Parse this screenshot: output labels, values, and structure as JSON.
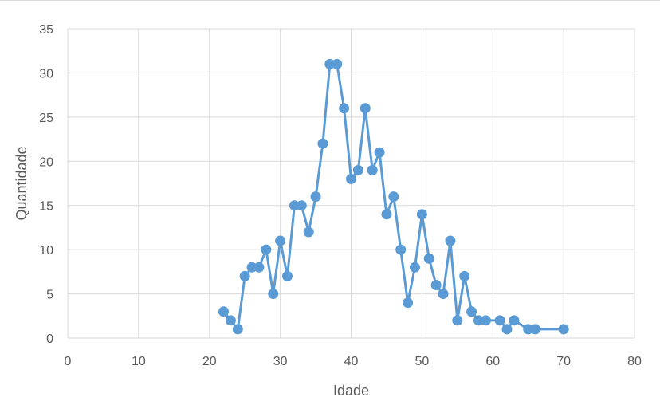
{
  "chart_data": {
    "type": "scatter",
    "title": "",
    "xlabel": "Idade",
    "ylabel": "Quantidade",
    "xlim": [
      0,
      80
    ],
    "ylim": [
      0,
      35
    ],
    "x_ticks": [
      0,
      10,
      20,
      30,
      40,
      50,
      60,
      70,
      80
    ],
    "y_ticks": [
      0,
      5,
      10,
      15,
      20,
      25,
      30,
      35
    ],
    "grid": true,
    "legend": "none",
    "line_color": "#5b9bd5",
    "series": [
      {
        "x": [
          22,
          23,
          24,
          25,
          26,
          27,
          28,
          29,
          30,
          31,
          32,
          33,
          34,
          35,
          36,
          37,
          38,
          39,
          40,
          41,
          42,
          43,
          44,
          45,
          46,
          47,
          48,
          49,
          50,
          51,
          52,
          53,
          54,
          55,
          56,
          57,
          58,
          59,
          61,
          62,
          63,
          65,
          66,
          70
        ],
        "y": [
          3,
          2,
          1,
          7,
          8,
          8,
          10,
          5,
          11,
          7,
          15,
          15,
          12,
          16,
          22,
          31,
          31,
          26,
          18,
          19,
          26,
          19,
          21,
          14,
          16,
          10,
          4,
          8,
          14,
          9,
          6,
          5,
          11,
          2,
          7,
          3,
          2,
          2,
          2,
          1,
          2,
          1,
          1,
          1
        ]
      }
    ]
  }
}
